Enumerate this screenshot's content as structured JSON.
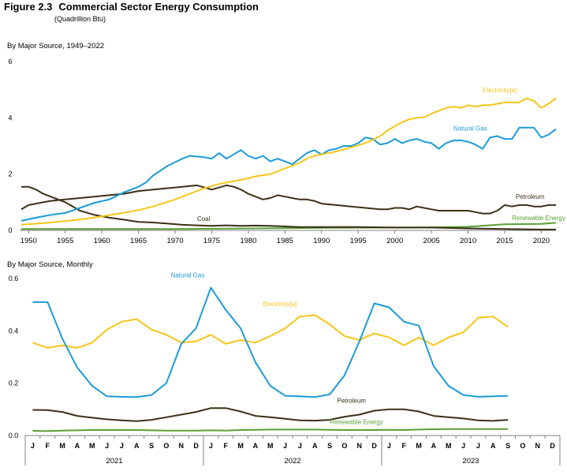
{
  "figure": {
    "number": "Figure 2.3",
    "title": "Commercial Sector Energy Consumption",
    "unit": "(Quadrillion Btu)"
  },
  "colors": {
    "electricity": "#f5c518",
    "natural_gas": "#1b9bd7",
    "petroleum": "#3d3017",
    "coal": "#3d3017",
    "renewable": "#5aa032",
    "axis": "#808080",
    "text": "#000000"
  },
  "chart_data": [
    {
      "type": "line",
      "title": "By Major Source, 1949–2022",
      "xlabel": "",
      "ylabel": "",
      "xlim": [
        1949,
        2022
      ],
      "ylim": [
        0,
        6
      ],
      "yticks": [
        0,
        2,
        4,
        6
      ],
      "xticks": [
        1950,
        1955,
        1960,
        1965,
        1970,
        1975,
        1980,
        1985,
        1990,
        1995,
        2000,
        2005,
        2010,
        2015,
        2020
      ],
      "grid": false,
      "legend": "inline labels",
      "series": [
        {
          "name": "Electricity[a]",
          "key": "electricity",
          "label_at": [
            2012,
            4.9
          ],
          "x": [
            1949,
            1952,
            1955,
            1958,
            1960,
            1962,
            1965,
            1967,
            1970,
            1972,
            1974,
            1976,
            1978,
            1980,
            1981,
            1983,
            1984,
            1985,
            1987,
            1988,
            1989,
            1990,
            1992,
            1994,
            1996,
            1998,
            1999,
            2000,
            2001,
            2002,
            2003,
            2004,
            2005,
            2006,
            2007,
            2008,
            2009,
            2010,
            2011,
            2012,
            2013,
            2014,
            2015,
            2016,
            2017,
            2018,
            2019,
            2020,
            2021,
            2022
          ],
          "y": [
            0.2,
            0.26,
            0.33,
            0.42,
            0.5,
            0.58,
            0.72,
            0.85,
            1.1,
            1.3,
            1.5,
            1.65,
            1.75,
            1.85,
            1.92,
            2.0,
            2.1,
            2.2,
            2.4,
            2.55,
            2.65,
            2.7,
            2.8,
            2.95,
            3.1,
            3.35,
            3.55,
            3.7,
            3.85,
            3.95,
            4.0,
            4.02,
            4.15,
            4.25,
            4.35,
            4.4,
            4.35,
            4.45,
            4.4,
            4.45,
            4.45,
            4.5,
            4.55,
            4.55,
            4.55,
            4.7,
            4.6,
            4.35,
            4.5,
            4.7
          ]
        },
        {
          "name": "Natural Gas",
          "key": "natural_gas",
          "label_at": [
            2008,
            3.55
          ],
          "x": [
            1949,
            1951,
            1953,
            1955,
            1957,
            1959,
            1961,
            1963,
            1965,
            1966,
            1967,
            1969,
            1971,
            1972,
            1974,
            1975,
            1976,
            1977,
            1978,
            1979,
            1980,
            1981,
            1982,
            1983,
            1984,
            1985,
            1986,
            1987,
            1988,
            1989,
            1990,
            1991,
            1992,
            1993,
            1994,
            1995,
            1996,
            1997,
            1998,
            1999,
            2000,
            2001,
            2002,
            2003,
            2004,
            2005,
            2006,
            2007,
            2008,
            2009,
            2010,
            2011,
            2012,
            2013,
            2014,
            2015,
            2016,
            2017,
            2018,
            2019,
            2020,
            2021,
            2022
          ],
          "y": [
            0.34,
            0.45,
            0.55,
            0.62,
            0.8,
            0.98,
            1.1,
            1.35,
            1.55,
            1.7,
            1.95,
            2.3,
            2.55,
            2.65,
            2.6,
            2.55,
            2.75,
            2.55,
            2.7,
            2.85,
            2.65,
            2.55,
            2.65,
            2.45,
            2.55,
            2.45,
            2.35,
            2.55,
            2.75,
            2.85,
            2.7,
            2.85,
            2.9,
            3.0,
            3.0,
            3.1,
            3.3,
            3.25,
            3.05,
            3.1,
            3.25,
            3.1,
            3.2,
            3.25,
            3.15,
            3.1,
            2.9,
            3.1,
            3.2,
            3.2,
            3.15,
            3.05,
            2.9,
            3.3,
            3.35,
            3.25,
            3.25,
            3.65,
            3.65,
            3.65,
            3.3,
            3.4,
            3.6
          ]
        },
        {
          "name": "Petroleum",
          "key": "petroleum",
          "label_at": [
            2016.5,
            1.12
          ],
          "x": [
            1949,
            1950,
            1951,
            1952,
            1953,
            1955,
            1957,
            1959,
            1961,
            1963,
            1965,
            1967,
            1969,
            1971,
            1973,
            1975,
            1977,
            1978,
            1979,
            1980,
            1981,
            1982,
            1983,
            1984,
            1985,
            1986,
            1987,
            1988,
            1989,
            1990,
            1992,
            1994,
            1996,
            1998,
            1999,
            2000,
            2001,
            2002,
            2003,
            2004,
            2005,
            2006,
            2007,
            2008,
            2009,
            2010,
            2011,
            2012,
            2013,
            2014,
            2015,
            2016,
            2017,
            2018,
            2019,
            2020,
            2021,
            2022
          ],
          "y": [
            0.75,
            0.9,
            0.95,
            1.0,
            1.05,
            1.1,
            1.15,
            1.2,
            1.25,
            1.3,
            1.4,
            1.45,
            1.5,
            1.55,
            1.6,
            1.45,
            1.6,
            1.55,
            1.45,
            1.3,
            1.2,
            1.1,
            1.15,
            1.25,
            1.2,
            1.15,
            1.1,
            1.1,
            1.05,
            0.95,
            0.9,
            0.85,
            0.8,
            0.75,
            0.75,
            0.8,
            0.8,
            0.75,
            0.85,
            0.8,
            0.75,
            0.7,
            0.7,
            0.7,
            0.7,
            0.7,
            0.65,
            0.6,
            0.6,
            0.7,
            0.9,
            0.85,
            0.9,
            0.9,
            0.85,
            0.85,
            0.9,
            0.9
          ]
        },
        {
          "name": "Coal",
          "key": "coal",
          "label_at": [
            1973,
            0.33
          ],
          "x": [
            1949,
            1950,
            1951,
            1952,
            1953,
            1955,
            1957,
            1959,
            1961,
            1963,
            1965,
            1967,
            1969,
            1971,
            1973,
            1975,
            1977,
            1979,
            1981,
            1983,
            1985,
            1987,
            1990,
            1995,
            2000,
            2005,
            2010,
            2015,
            2020,
            2022
          ],
          "y": [
            1.55,
            1.55,
            1.45,
            1.3,
            1.2,
            1.0,
            0.7,
            0.55,
            0.45,
            0.38,
            0.3,
            0.28,
            0.24,
            0.2,
            0.18,
            0.16,
            0.18,
            0.16,
            0.17,
            0.16,
            0.14,
            0.12,
            0.12,
            0.12,
            0.1,
            0.1,
            0.07,
            0.05,
            0.03,
            0.03
          ]
        },
        {
          "name": "Renewable Energy",
          "key": "renewable",
          "label_at": [
            2016,
            0.36
          ],
          "x": [
            1949,
            1960,
            1970,
            1980,
            1990,
            2000,
            2005,
            2010,
            2015,
            2020,
            2022
          ],
          "y": [
            0.05,
            0.05,
            0.05,
            0.07,
            0.09,
            0.1,
            0.11,
            0.13,
            0.22,
            0.23,
            0.27
          ]
        }
      ]
    },
    {
      "type": "line",
      "title": "By Major Source, Monthly",
      "xlabel": "",
      "ylabel": "",
      "ylim": [
        0,
        0.6
      ],
      "yticks": [
        0.0,
        0.2,
        0.4,
        0.6
      ],
      "ytick_labels": [
        "0.0",
        "0.2",
        "0.4",
        "0.6"
      ],
      "months": [
        "J",
        "F",
        "M",
        "A",
        "M",
        "J",
        "J",
        "A",
        "S",
        "O",
        "N",
        "D"
      ],
      "years": [
        "2021",
        "2022",
        "2023"
      ],
      "grid": false,
      "legend": "inline labels",
      "series": [
        {
          "name": "Natural Gas",
          "key": "natural_gas",
          "label_at": [
            9.3,
            0.605
          ],
          "y": [
            0.51,
            0.51,
            0.37,
            0.26,
            0.19,
            0.15,
            0.148,
            0.147,
            0.155,
            0.2,
            0.35,
            0.41,
            0.565,
            0.48,
            0.41,
            0.28,
            0.19,
            0.152,
            0.15,
            0.147,
            0.157,
            0.23,
            0.36,
            0.505,
            0.49,
            0.435,
            0.42,
            0.265,
            0.19,
            0.155,
            0.148,
            0.15,
            0.152
          ]
        },
        {
          "name": "Electricity[a]",
          "key": "electricity",
          "label_at": [
            15.5,
            0.495
          ],
          "y": [
            0.355,
            0.335,
            0.345,
            0.335,
            0.355,
            0.405,
            0.435,
            0.445,
            0.405,
            0.385,
            0.355,
            0.36,
            0.385,
            0.35,
            0.365,
            0.355,
            0.38,
            0.41,
            0.455,
            0.46,
            0.425,
            0.38,
            0.365,
            0.39,
            0.375,
            0.345,
            0.375,
            0.345,
            0.375,
            0.395,
            0.45,
            0.455,
            0.415
          ]
        },
        {
          "name": "Petroleum",
          "key": "petroleum",
          "label_at": [
            20.5,
            0.125
          ],
          "y": [
            0.098,
            0.097,
            0.09,
            0.075,
            0.068,
            0.062,
            0.058,
            0.055,
            0.06,
            0.07,
            0.08,
            0.09,
            0.105,
            0.105,
            0.092,
            0.075,
            0.07,
            0.064,
            0.058,
            0.057,
            0.06,
            0.072,
            0.08,
            0.095,
            0.1,
            0.1,
            0.092,
            0.075,
            0.07,
            0.065,
            0.058,
            0.056,
            0.06
          ]
        },
        {
          "name": "Renewable Energy",
          "key": "renewable",
          "label_at": [
            20.0,
            0.043
          ],
          "y": [
            0.018,
            0.017,
            0.019,
            0.02,
            0.021,
            0.021,
            0.021,
            0.021,
            0.02,
            0.019,
            0.019,
            0.019,
            0.02,
            0.019,
            0.021,
            0.022,
            0.023,
            0.023,
            0.023,
            0.023,
            0.022,
            0.021,
            0.021,
            0.021,
            0.022,
            0.021,
            0.023,
            0.024,
            0.025,
            0.025,
            0.025,
            0.025,
            0.025
          ]
        }
      ]
    }
  ]
}
